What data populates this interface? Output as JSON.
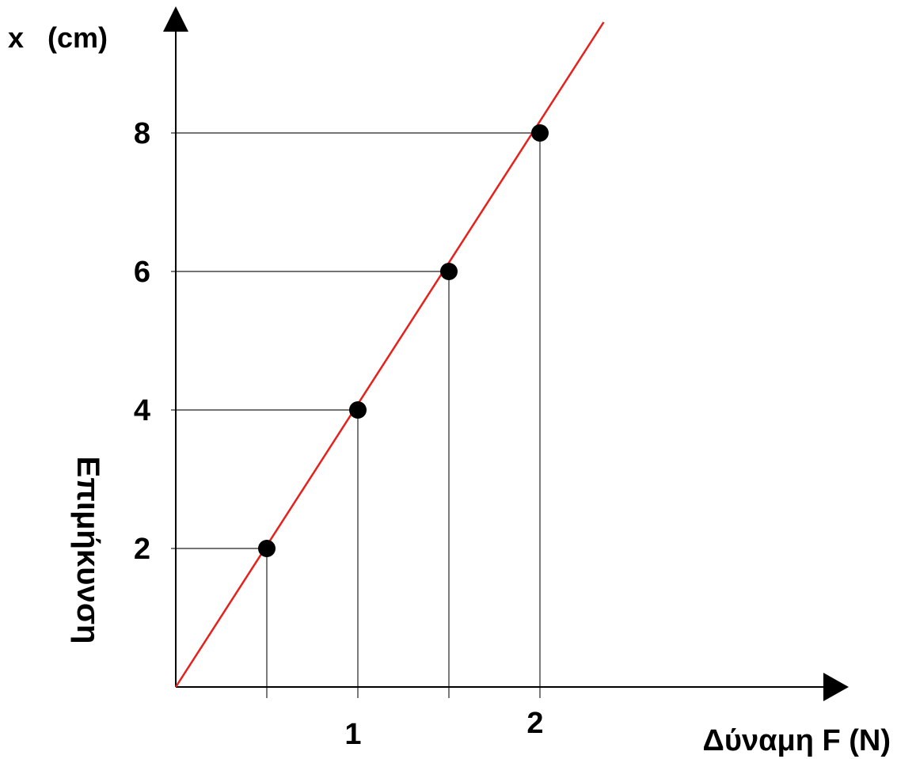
{
  "chart_data": {
    "type": "line",
    "xlabel": "Δύναμη F (N)",
    "ylabel": "Επιμήκυνση",
    "y_axis_unit_label": "x   (cm)",
    "x_tick_labels": [
      "1",
      "2"
    ],
    "x_ticks": [
      1,
      2
    ],
    "y_tick_labels": [
      "2",
      "4",
      "6",
      "8"
    ],
    "y_ticks": [
      2,
      4,
      6,
      8
    ],
    "xlim": [
      0,
      3.7
    ],
    "ylim": [
      0,
      9.8
    ],
    "points": [
      {
        "x": 0.5,
        "y": 2
      },
      {
        "x": 1.0,
        "y": 4
      },
      {
        "x": 1.5,
        "y": 6
      },
      {
        "x": 2.0,
        "y": 8
      }
    ],
    "fit_line": {
      "from": [
        0,
        0
      ],
      "to": [
        2.35,
        9.6
      ]
    },
    "guide_lines": true,
    "line_color": "#e8201a",
    "point_color": "#000000"
  }
}
